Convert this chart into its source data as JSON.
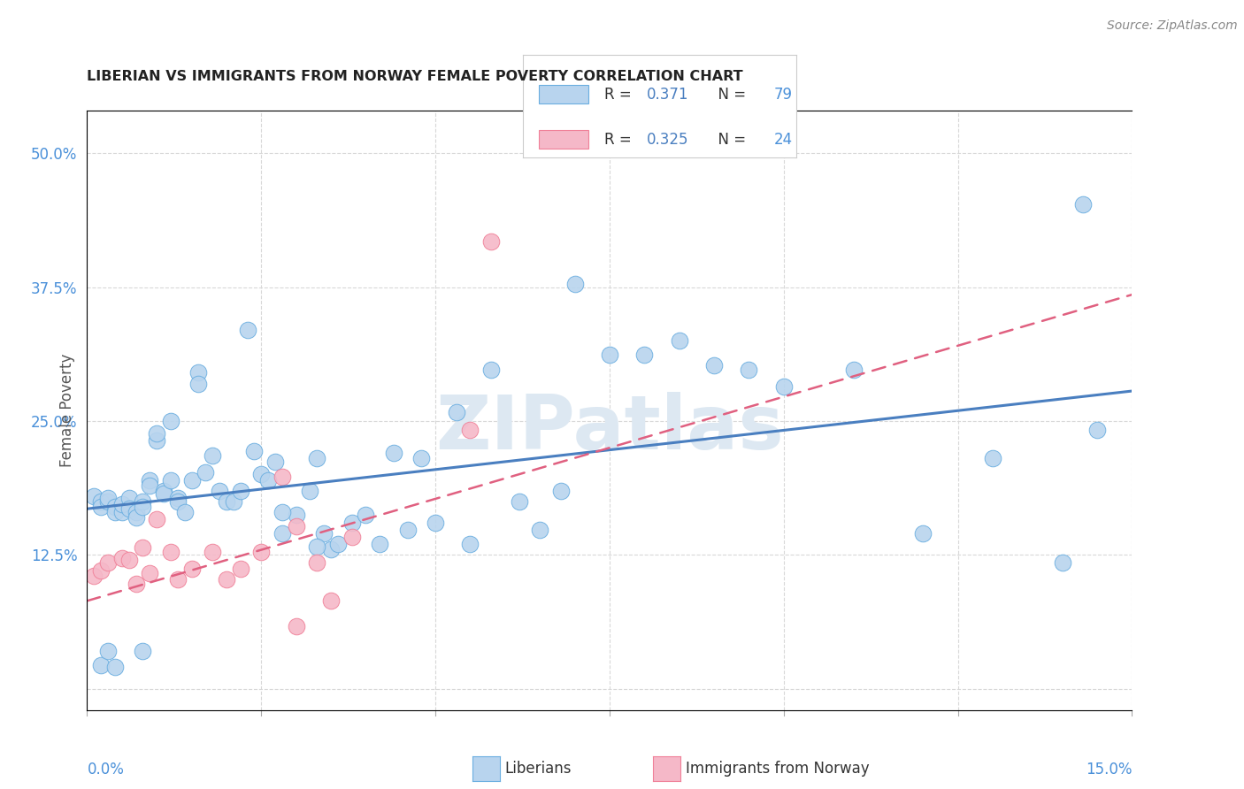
{
  "title": "LIBERIAN VS IMMIGRANTS FROM NORWAY FEMALE POVERTY CORRELATION CHART",
  "source": "Source: ZipAtlas.com",
  "ylabel": "Female Poverty",
  "yticks": [
    0.0,
    0.125,
    0.25,
    0.375,
    0.5
  ],
  "ytick_labels": [
    "",
    "12.5%",
    "25.0%",
    "37.5%",
    "50.0%"
  ],
  "xlim": [
    0.0,
    0.15
  ],
  "ylim": [
    -0.02,
    0.54
  ],
  "legend1_R": "0.371",
  "legend1_N": "79",
  "legend2_R": "0.325",
  "legend2_N": "24",
  "liberian_fill": "#b8d4ee",
  "norway_fill": "#f5b8c8",
  "liberian_edge": "#6aaee0",
  "norway_edge": "#f08098",
  "liberian_line": "#4a7fc0",
  "norway_line": "#e06080",
  "legend_R_color": "#4a7fc0",
  "legend_N_color": "#4a90d9",
  "watermark_color": "#dde8f2",
  "grid_color": "#d8d8d8",
  "scatter_liberian_x": [
    0.001,
    0.002,
    0.002,
    0.003,
    0.003,
    0.004,
    0.004,
    0.005,
    0.005,
    0.006,
    0.006,
    0.007,
    0.007,
    0.008,
    0.008,
    0.009,
    0.009,
    0.01,
    0.01,
    0.011,
    0.011,
    0.012,
    0.012,
    0.013,
    0.013,
    0.014,
    0.015,
    0.016,
    0.017,
    0.018,
    0.019,
    0.02,
    0.021,
    0.022,
    0.023,
    0.024,
    0.025,
    0.026,
    0.027,
    0.028,
    0.03,
    0.032,
    0.033,
    0.034,
    0.035,
    0.036,
    0.038,
    0.04,
    0.042,
    0.044,
    0.046,
    0.048,
    0.05,
    0.053,
    0.055,
    0.058,
    0.062,
    0.065,
    0.068,
    0.07,
    0.075,
    0.08,
    0.085,
    0.09,
    0.095,
    0.1,
    0.11,
    0.12,
    0.13,
    0.14,
    0.143,
    0.145,
    0.002,
    0.008,
    0.004,
    0.003,
    0.016,
    0.028,
    0.033
  ],
  "scatter_liberian_y": [
    0.18,
    0.175,
    0.17,
    0.175,
    0.178,
    0.17,
    0.165,
    0.165,
    0.172,
    0.178,
    0.168,
    0.165,
    0.16,
    0.175,
    0.17,
    0.195,
    0.19,
    0.232,
    0.238,
    0.185,
    0.182,
    0.25,
    0.195,
    0.178,
    0.175,
    0.165,
    0.195,
    0.295,
    0.202,
    0.218,
    0.185,
    0.175,
    0.175,
    0.185,
    0.335,
    0.222,
    0.2,
    0.195,
    0.212,
    0.145,
    0.162,
    0.185,
    0.215,
    0.145,
    0.13,
    0.135,
    0.155,
    0.162,
    0.135,
    0.22,
    0.148,
    0.215,
    0.155,
    0.258,
    0.135,
    0.298,
    0.175,
    0.148,
    0.185,
    0.378,
    0.312,
    0.312,
    0.325,
    0.302,
    0.298,
    0.282,
    0.298,
    0.145,
    0.215,
    0.118,
    0.452,
    0.242,
    0.022,
    0.035,
    0.02,
    0.035,
    0.285,
    0.165,
    0.133
  ],
  "scatter_norway_x": [
    0.001,
    0.002,
    0.003,
    0.005,
    0.006,
    0.007,
    0.008,
    0.009,
    0.01,
    0.012,
    0.013,
    0.015,
    0.018,
    0.02,
    0.022,
    0.025,
    0.028,
    0.03,
    0.03,
    0.033,
    0.035,
    0.038,
    0.055,
    0.058
  ],
  "scatter_norway_y": [
    0.105,
    0.11,
    0.118,
    0.122,
    0.12,
    0.098,
    0.132,
    0.108,
    0.158,
    0.128,
    0.102,
    0.112,
    0.128,
    0.102,
    0.112,
    0.128,
    0.198,
    0.152,
    0.058,
    0.118,
    0.082,
    0.142,
    0.242,
    0.418
  ],
  "lib_line_x0": 0.0,
  "lib_line_y0": 0.168,
  "lib_line_x1": 0.15,
  "lib_line_y1": 0.278,
  "nor_line_x0": 0.0,
  "nor_line_y0": 0.082,
  "nor_line_x1": 0.15,
  "nor_line_y1": 0.368
}
